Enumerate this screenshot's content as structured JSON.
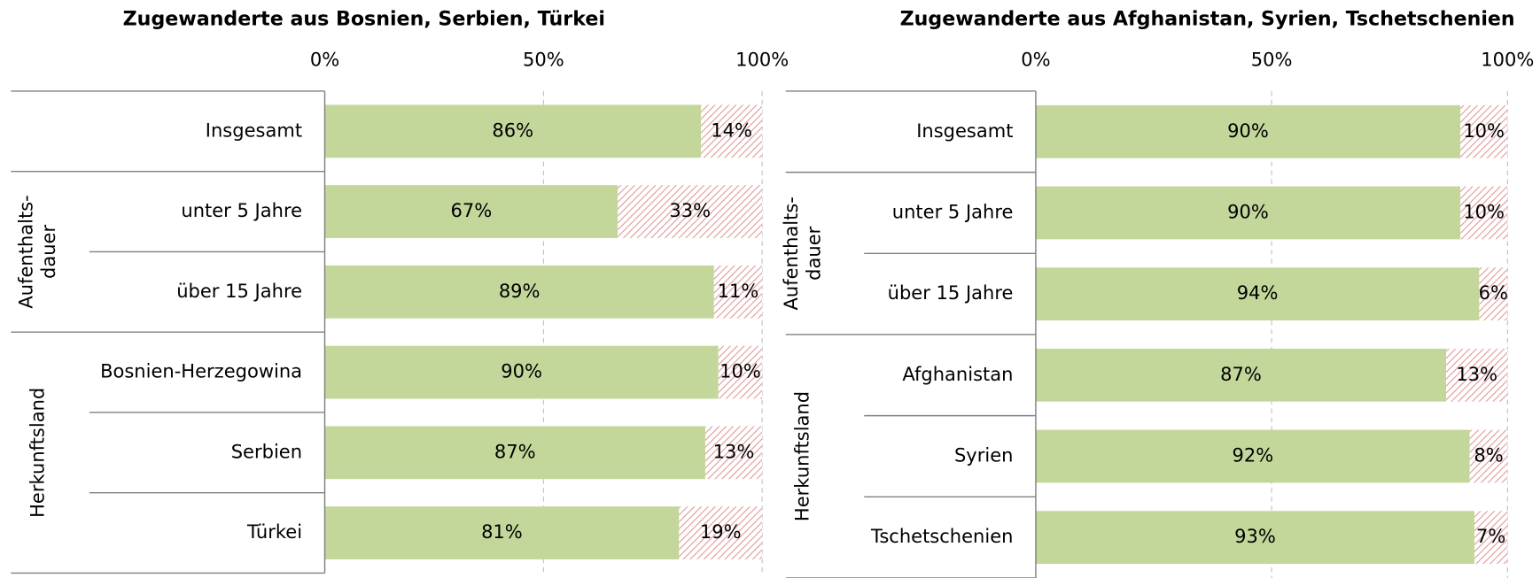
{
  "chart_data": [
    {
      "type": "stacked-bar-horizontal",
      "title": "Zugewanderte aus Bosnien, Serbien, Türkei",
      "groups": [
        {
          "label": null,
          "categories": [
            "Insgesamt"
          ]
        },
        {
          "label": [
            "Aufenthalts-",
            "dauer"
          ],
          "categories": [
            "unter 5 Jahre",
            "über 15 Jahre"
          ]
        },
        {
          "label": [
            "Herkunftsland"
          ],
          "categories": [
            "Bosnien-Herzegowina",
            "Serbien",
            "Türkei"
          ]
        }
      ],
      "series": [
        {
          "color": "#c4d79b",
          "values": [
            86,
            67,
            89,
            90,
            87,
            81
          ],
          "value_labels": [
            "86%",
            "67%",
            "89%",
            "90%",
            "87%",
            "81%"
          ]
        },
        {
          "color": "#e09a9a",
          "pattern": "hatch",
          "values": [
            14,
            33,
            11,
            10,
            13,
            19
          ],
          "value_labels": [
            "14%",
            "33%",
            "11%",
            "10%",
            "13%",
            "19%"
          ]
        }
      ],
      "xlim": [
        0,
        100
      ],
      "xticks": [
        {
          "value": 0,
          "label": "0%"
        },
        {
          "value": 50,
          "label": "50%"
        },
        {
          "value": 100,
          "label": "100%"
        }
      ],
      "grid": true
    },
    {
      "type": "stacked-bar-horizontal",
      "title": "Zugewanderte aus Afghanistan, Syrien, Tschetschenien",
      "groups": [
        {
          "label": null,
          "categories": [
            "Insgesamt"
          ]
        },
        {
          "label": [
            "Aufenthalts-",
            "dauer"
          ],
          "categories": [
            "unter 5 Jahre",
            "über 15 Jahre"
          ]
        },
        {
          "label": [
            "Herkunftsland"
          ],
          "categories": [
            "Afghanistan",
            "Syrien",
            "Tschetschenien"
          ]
        }
      ],
      "series": [
        {
          "color": "#c4d79b",
          "values": [
            90,
            90,
            94,
            87,
            92,
            93
          ],
          "value_labels": [
            "90%",
            "90%",
            "94%",
            "87%",
            "92%",
            "93%"
          ]
        },
        {
          "color": "#e09a9a",
          "pattern": "hatch",
          "values": [
            10,
            10,
            6,
            13,
            8,
            7
          ],
          "value_labels": [
            "10%",
            "10%",
            "6%",
            "13%",
            "8%",
            "7%"
          ]
        }
      ],
      "xlim": [
        0,
        100
      ],
      "xticks": [
        {
          "value": 0,
          "label": "0%"
        },
        {
          "value": 50,
          "label": "50%"
        },
        {
          "value": 100,
          "label": "100%"
        }
      ],
      "grid": true
    }
  ]
}
